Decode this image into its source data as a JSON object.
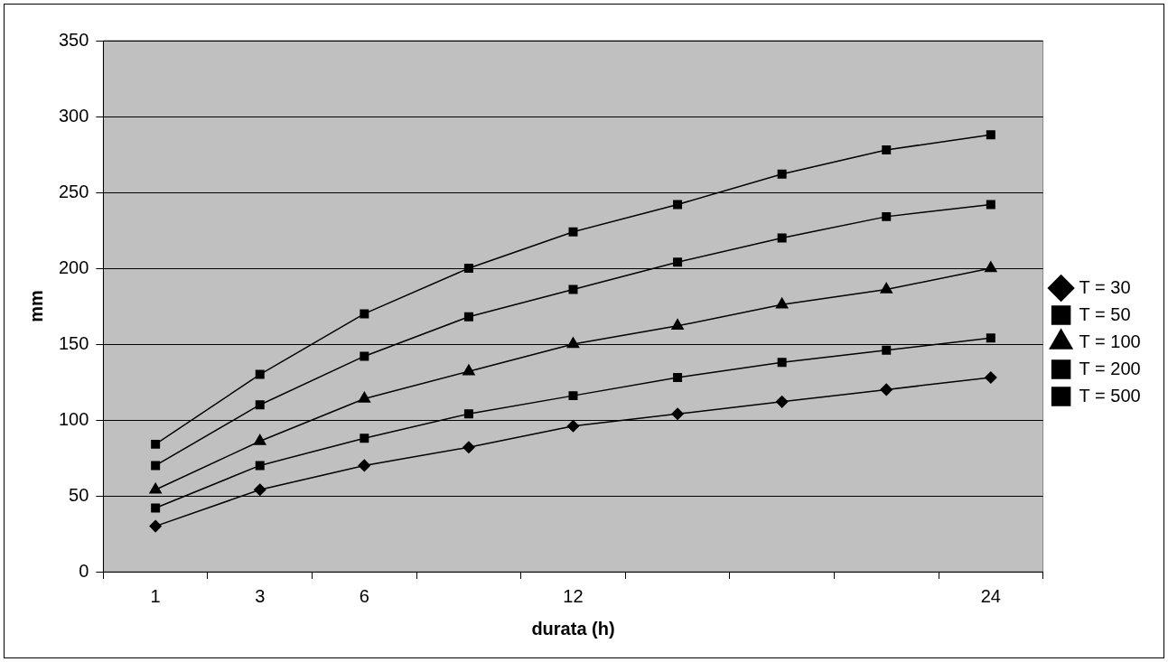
{
  "chart_data": {
    "type": "line",
    "xlabel": "durata (h)",
    "ylabel": "mm",
    "categories": [
      "1",
      "3",
      "6",
      null,
      "12",
      null,
      null,
      null,
      "24"
    ],
    "series": [
      {
        "name": "T = 30",
        "color": "#000000",
        "marker": "diamond",
        "values": [
          30,
          54,
          70,
          82,
          96,
          104,
          112,
          120,
          128
        ]
      },
      {
        "name": "T = 50",
        "color": "#000000",
        "marker": "square",
        "values": [
          42,
          70,
          88,
          104,
          116,
          128,
          138,
          146,
          154
        ]
      },
      {
        "name": "T = 100",
        "color": "#000000",
        "marker": "triangle",
        "values": [
          54,
          86,
          114,
          132,
          150,
          162,
          176,
          186,
          200
        ]
      },
      {
        "name": "T = 200",
        "color": "#000000",
        "marker": "square",
        "values": [
          70,
          110,
          142,
          168,
          186,
          204,
          220,
          234,
          242
        ]
      },
      {
        "name": "T = 500",
        "color": "#000000",
        "marker": "square",
        "values": [
          84,
          130,
          170,
          200,
          224,
          242,
          262,
          278,
          288
        ]
      }
    ],
    "ylim": [
      0,
      350
    ],
    "yticks": [
      0,
      50,
      100,
      150,
      200,
      250,
      300,
      350
    ],
    "grid": "y",
    "legend": "right",
    "line_style": "solid"
  }
}
